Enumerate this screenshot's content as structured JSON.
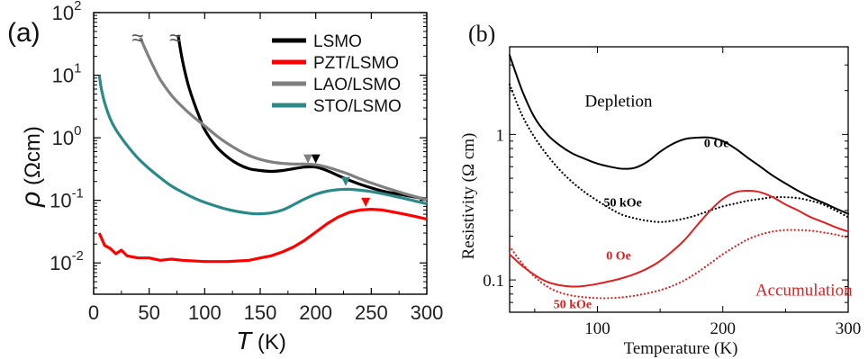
{
  "chart_data": [
    {
      "panel_label": "(a)",
      "type": "line",
      "xlabel": "T",
      "xlabel_unit": "(K)",
      "ylabel": "ρ",
      "ylabel_unit": "(Ωcm)",
      "xlim": [
        0,
        300
      ],
      "ylim_log10": [
        -2.5,
        2
      ],
      "y_scale": "log",
      "x_ticks": [
        "0",
        "50",
        "100",
        "150",
        "200",
        "250",
        "300"
      ],
      "y_ticks": [
        {
          "base": "10",
          "exp": "2",
          "value": 100
        },
        {
          "base": "10",
          "exp": "1",
          "value": 10
        },
        {
          "base": "10",
          "exp": "0",
          "value": 1
        },
        {
          "base": "10",
          "exp": "-1",
          "value": 0.1
        },
        {
          "base": "10",
          "exp": "-2",
          "value": 0.01
        }
      ],
      "legend_position": "top-right",
      "break_symbol": "≈",
      "series": [
        {
          "name": "LSMO",
          "color": "#000000",
          "x": [
            76,
            80,
            85,
            90,
            95,
            100,
            110,
            120,
            130,
            140,
            150,
            160,
            170,
            180,
            190,
            200,
            210,
            220,
            230,
            240,
            250,
            260,
            270,
            280,
            290,
            300
          ],
          "y": [
            44,
            17,
            7.2,
            3.8,
            2.2,
            1.35,
            0.74,
            0.5,
            0.38,
            0.32,
            0.3,
            0.29,
            0.3,
            0.32,
            0.34,
            0.34,
            0.3,
            0.25,
            0.21,
            0.18,
            0.158,
            0.141,
            0.13,
            0.121,
            0.112,
            0.105
          ],
          "peak_marker": {
            "x": 200,
            "y": 0.46
          }
        },
        {
          "name": "PZT/LSMO",
          "color": "#ff0000",
          "x": [
            5,
            10,
            15,
            20,
            25,
            30,
            40,
            50,
            60,
            70,
            80,
            100,
            120,
            140,
            150,
            160,
            170,
            180,
            190,
            200,
            210,
            220,
            230,
            240,
            250,
            260,
            270,
            280,
            290,
            300
          ],
          "y": [
            0.03,
            0.019,
            0.017,
            0.014,
            0.016,
            0.013,
            0.012,
            0.012,
            0.011,
            0.0115,
            0.011,
            0.0105,
            0.0105,
            0.011,
            0.012,
            0.013,
            0.015,
            0.018,
            0.023,
            0.031,
            0.042,
            0.054,
            0.064,
            0.07,
            0.072,
            0.07,
            0.065,
            0.06,
            0.055,
            0.05
          ],
          "peak_marker": {
            "x": 245,
            "y": 0.093
          }
        },
        {
          "name": "LAO/LSMO",
          "color": "#808080",
          "x": [
            42,
            45,
            50,
            55,
            60,
            70,
            80,
            90,
            100,
            110,
            120,
            130,
            140,
            150,
            160,
            170,
            180,
            190,
            200,
            210,
            220,
            230,
            240,
            250,
            260,
            270,
            280,
            290,
            300
          ],
          "y": [
            40,
            30,
            19,
            12.5,
            8.5,
            4.8,
            3.1,
            2.15,
            1.55,
            1.1,
            0.82,
            0.64,
            0.52,
            0.45,
            0.41,
            0.39,
            0.38,
            0.38,
            0.37,
            0.34,
            0.3,
            0.26,
            0.22,
            0.19,
            0.165,
            0.145,
            0.128,
            0.114,
            0.102
          ],
          "peak_marker": {
            "x": 193,
            "y": 0.46
          }
        },
        {
          "name": "STO/LSMO",
          "color": "#2b8a87",
          "x": [
            5,
            7,
            10,
            15,
            20,
            25,
            30,
            40,
            50,
            60,
            70,
            80,
            90,
            100,
            120,
            140,
            150,
            160,
            170,
            180,
            190,
            200,
            210,
            220,
            230,
            240,
            250,
            260,
            270,
            280,
            290,
            300
          ],
          "y": [
            10,
            6,
            3.6,
            2.0,
            1.35,
            1.0,
            0.76,
            0.47,
            0.32,
            0.23,
            0.17,
            0.135,
            0.11,
            0.093,
            0.072,
            0.062,
            0.061,
            0.063,
            0.07,
            0.085,
            0.105,
            0.125,
            0.14,
            0.148,
            0.15,
            0.145,
            0.138,
            0.128,
            0.117,
            0.107,
            0.097,
            0.088
          ],
          "peak_marker": {
            "x": 227,
            "y": 0.2
          }
        }
      ]
    },
    {
      "panel_label": "(b)",
      "type": "line",
      "xlabel": "Temperature (K)",
      "ylabel": "Resistivity (Ω cm)",
      "xlim": [
        30,
        300
      ],
      "ylim": [
        0.06,
        4
      ],
      "y_scale": "log",
      "x_ticks": [
        "100",
        "200",
        "300"
      ],
      "y_ticks": [
        {
          "label": "1",
          "value": 1
        },
        {
          "label": "0.1",
          "value": 0.1
        }
      ],
      "annotations": [
        {
          "text": "Depletion",
          "color": "#000000",
          "anchor": [
            90,
            1.55
          ],
          "size": 19
        },
        {
          "text": "0 Oe",
          "color": "#000000",
          "anchor": [
            185,
            0.82
          ],
          "size": 14,
          "bold": true
        },
        {
          "text": "50 kOe",
          "color": "#000000",
          "anchor": [
            105,
            0.32
          ],
          "size": 14,
          "bold": true
        },
        {
          "text": "0 Oe",
          "color": "#e02020",
          "anchor": [
            107,
            0.138
          ],
          "size": 14,
          "bold": true
        },
        {
          "text": "50 kOe",
          "color": "#e02020",
          "anchor": [
            65,
            0.064
          ],
          "size": 14,
          "bold": true
        },
        {
          "text": "Accumulation",
          "color": "#e02020",
          "anchor": [
            226,
            0.078
          ],
          "size": 19
        }
      ],
      "series": [
        {
          "name": "Depletion, 0 Oe",
          "color": "#000000",
          "dash": "solid",
          "x": [
            30,
            40,
            50,
            60,
            70,
            80,
            90,
            100,
            110,
            120,
            130,
            140,
            150,
            160,
            170,
            180,
            190,
            200,
            210,
            220,
            230,
            240,
            250,
            260,
            270,
            280,
            290,
            300
          ],
          "y": [
            3.5,
            2.0,
            1.3,
            1.0,
            0.84,
            0.74,
            0.68,
            0.63,
            0.6,
            0.58,
            0.59,
            0.65,
            0.76,
            0.86,
            0.93,
            0.95,
            0.95,
            0.9,
            0.8,
            0.69,
            0.6,
            0.52,
            0.46,
            0.41,
            0.37,
            0.34,
            0.31,
            0.285
          ]
        },
        {
          "name": "Depletion, 50 kOe",
          "color": "#000000",
          "dash": "dotted",
          "x": [
            30,
            40,
            50,
            60,
            70,
            80,
            90,
            100,
            110,
            120,
            130,
            140,
            150,
            160,
            170,
            180,
            190,
            200,
            210,
            220,
            230,
            240,
            250,
            260,
            270,
            280,
            290,
            300
          ],
          "y": [
            2.2,
            1.35,
            0.95,
            0.72,
            0.57,
            0.47,
            0.4,
            0.35,
            0.31,
            0.28,
            0.265,
            0.255,
            0.25,
            0.255,
            0.265,
            0.28,
            0.3,
            0.32,
            0.335,
            0.35,
            0.36,
            0.37,
            0.37,
            0.365,
            0.35,
            0.33,
            0.3,
            0.27
          ]
        },
        {
          "name": "Accumulation, 0 Oe",
          "color": "#e02020",
          "dash": "solid",
          "x": [
            30,
            40,
            50,
            60,
            70,
            80,
            90,
            100,
            110,
            120,
            130,
            140,
            150,
            160,
            170,
            180,
            190,
            200,
            210,
            220,
            230,
            240,
            250,
            260,
            270,
            280,
            290,
            300
          ],
          "y": [
            0.15,
            0.125,
            0.108,
            0.097,
            0.092,
            0.09,
            0.091,
            0.094,
            0.098,
            0.103,
            0.11,
            0.12,
            0.135,
            0.158,
            0.19,
            0.24,
            0.3,
            0.36,
            0.4,
            0.41,
            0.4,
            0.37,
            0.33,
            0.3,
            0.27,
            0.25,
            0.23,
            0.215
          ]
        },
        {
          "name": "Accumulation, 50 kOe",
          "color": "#e02020",
          "dash": "dotted",
          "x": [
            30,
            40,
            50,
            60,
            70,
            80,
            90,
            100,
            110,
            120,
            130,
            140,
            150,
            160,
            170,
            180,
            190,
            200,
            210,
            220,
            230,
            240,
            250,
            260,
            270,
            280,
            290,
            300
          ],
          "y": [
            0.17,
            0.13,
            0.105,
            0.09,
            0.082,
            0.078,
            0.076,
            0.075,
            0.075,
            0.076,
            0.078,
            0.081,
            0.085,
            0.091,
            0.1,
            0.113,
            0.13,
            0.15,
            0.17,
            0.19,
            0.205,
            0.215,
            0.22,
            0.22,
            0.218,
            0.212,
            0.205,
            0.195
          ]
        }
      ]
    }
  ]
}
